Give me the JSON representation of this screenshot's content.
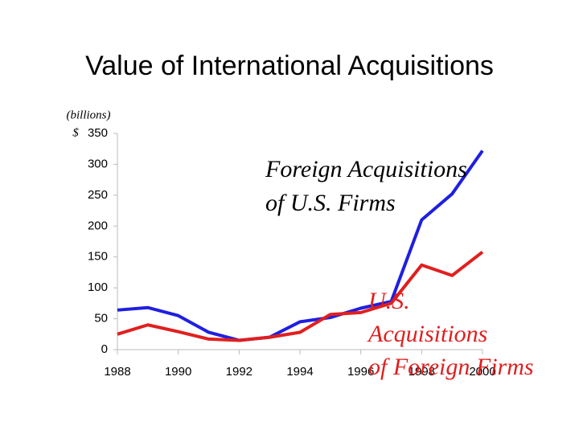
{
  "chart_data": {
    "type": "line",
    "title": "Value of International Acquisitions",
    "y_label": "(billions)",
    "y_unit_symbol": "$",
    "x": [
      1988,
      1989,
      1990,
      1991,
      1992,
      1993,
      1994,
      1995,
      1996,
      1997,
      1998,
      1999,
      2000
    ],
    "xlim": [
      1988,
      2000
    ],
    "xticks": [
      1988,
      1990,
      1992,
      1994,
      1996,
      1998,
      2000
    ],
    "ylim": [
      0,
      350
    ],
    "yticks": [
      0,
      50,
      100,
      150,
      200,
      250,
      300,
      350
    ],
    "grid": false,
    "series": [
      {
        "label_lines": [
          "Foreign Acquisitions",
          "of U.S. Firms"
        ],
        "color": "#1f1fe0",
        "label_color": "#000000",
        "values": [
          64,
          68,
          55,
          28,
          15,
          20,
          45,
          52,
          67,
          78,
          210,
          252,
          322
        ]
      },
      {
        "label_lines": [
          "U.S.",
          "Acquisitions",
          "of Foreign Firms"
        ],
        "color": "#e01f1f",
        "label_color": "#e01f1f",
        "values": [
          25,
          40,
          29,
          17,
          15,
          20,
          28,
          57,
          60,
          75,
          137,
          120,
          158
        ]
      }
    ]
  }
}
